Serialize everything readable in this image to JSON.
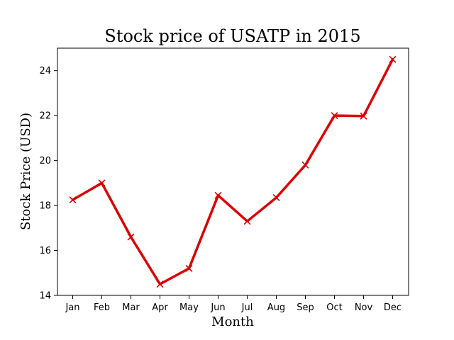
{
  "chart_data": {
    "type": "line",
    "title": "Stock price of USATP in 2015",
    "xlabel": "Month",
    "ylabel": "Stock Price (USD)",
    "categories": [
      "Jan",
      "Feb",
      "Mar",
      "Apr",
      "May",
      "Jun",
      "Jul",
      "Aug",
      "Sep",
      "Oct",
      "Nov",
      "Dec"
    ],
    "series": [
      {
        "values": [
          18.25,
          19.0,
          16.6,
          14.5,
          15.2,
          18.45,
          17.3,
          18.35,
          19.8,
          22.0,
          21.98,
          24.5
        ],
        "color": "#dd0000",
        "marker": "x"
      }
    ],
    "ylim": [
      14,
      25
    ],
    "yticks": [
      14,
      16,
      18,
      20,
      22,
      24
    ],
    "grid": false,
    "legend": "none"
  }
}
